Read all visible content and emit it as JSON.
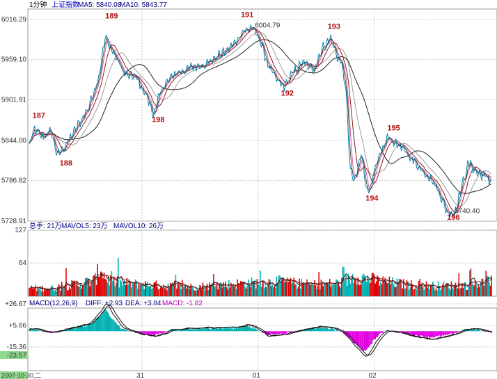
{
  "header": {
    "timeframe": "1分钟",
    "index_name": "上证指数",
    "ma5": "MA5: 5840.08",
    "ma10": "MA10: 5843.77"
  },
  "volume_header": {
    "label": "总手: 21万",
    "mavol5": "MAVOL5: 23万",
    "mavol10": "MAVOL10: 26万"
  },
  "macd_header": {
    "label": "MACD(12,26,9)",
    "diff": "DIFF: +2.93",
    "dea": "DEA: +3.84",
    "macd": "MACD: -1.82"
  },
  "price_axis": [
    "6016.29",
    "5959.10",
    "5901.91",
    "5844.00",
    "5786.82",
    "5728.91"
  ],
  "volume_axis": [
    "127",
    "64"
  ],
  "macd_axis": [
    "+26.67",
    "+5.66",
    "-15.36",
    "-23.57"
  ],
  "date_label": "2007-10-30,二",
  "x_ticks": [
    "31",
    "01",
    "02"
  ],
  "annotations": [
    {
      "text": "187",
      "x": 3,
      "y": 5876
    },
    {
      "text": "188",
      "x": 28,
      "y": 5808
    },
    {
      "text": "189",
      "x": 70,
      "y": 6018
    },
    {
      "text": "198",
      "x": 113,
      "y": 5870
    },
    {
      "text": "191",
      "x": 195,
      "y": 6020
    },
    {
      "text": "192",
      "x": 232,
      "y": 5908
    },
    {
      "text": "193",
      "x": 275,
      "y": 6003
    },
    {
      "text": "194",
      "x": 310,
      "y": 5758
    },
    {
      "text": "195",
      "x": 330,
      "y": 5858
    },
    {
      "text": "196",
      "x": 385,
      "y": 5731
    },
    {
      "text": "6004.79",
      "x": 208,
      "y": 6004.79
    },
    {
      "text": "5740.40",
      "x": 392,
      "y": 5740.4
    }
  ],
  "colors": {
    "up": "#e00000",
    "down": "#00b0b0",
    "ma_pink": "#d06090",
    "ma_dark_red": "#8b1a1a",
    "ma_black": "#222222",
    "ma_gray": "#9a9a9a",
    "macd_pos": "#00b0b0",
    "macd_neg": "#e000e0",
    "grid": "#c8c8c8",
    "axis_text": "#333333",
    "date_bg": "#8fd98f"
  },
  "chart_data": {
    "type": "line",
    "title": "上证指数 1分钟",
    "x_label": "",
    "y_label": "",
    "ylim": [
      5728.91,
      6016.29
    ],
    "price_keypoints": [
      [
        0,
        5838
      ],
      [
        5,
        5860
      ],
      [
        12,
        5848
      ],
      [
        20,
        5858
      ],
      [
        26,
        5822
      ],
      [
        30,
        5830
      ],
      [
        40,
        5852
      ],
      [
        55,
        5892
      ],
      [
        64,
        5935
      ],
      [
        70,
        5990
      ],
      [
        78,
        5968
      ],
      [
        88,
        5938
      ],
      [
        98,
        5934
      ],
      [
        108,
        5908
      ],
      [
        115,
        5880
      ],
      [
        122,
        5918
      ],
      [
        135,
        5940
      ],
      [
        150,
        5948
      ],
      [
        165,
        5955
      ],
      [
        178,
        5968
      ],
      [
        188,
        5980
      ],
      [
        196,
        5998
      ],
      [
        205,
        6004.79
      ],
      [
        212,
        5990
      ],
      [
        220,
        5952
      ],
      [
        228,
        5930
      ],
      [
        235,
        5920
      ],
      [
        242,
        5938
      ],
      [
        252,
        5955
      ],
      [
        262,
        5945
      ],
      [
        270,
        5975
      ],
      [
        278,
        5990
      ],
      [
        284,
        5962
      ],
      [
        288,
        5955
      ],
      [
        292,
        5912
      ],
      [
        296,
        5800
      ],
      [
        300,
        5785
      ],
      [
        306,
        5825
      ],
      [
        312,
        5768
      ],
      [
        320,
        5808
      ],
      [
        330,
        5848
      ],
      [
        340,
        5838
      ],
      [
        350,
        5822
      ],
      [
        360,
        5805
      ],
      [
        370,
        5790
      ],
      [
        378,
        5770
      ],
      [
        385,
        5742
      ],
      [
        392,
        5740.4
      ],
      [
        398,
        5775
      ],
      [
        405,
        5812
      ],
      [
        413,
        5798
      ],
      [
        420,
        5793
      ],
      [
        426,
        5786
      ]
    ],
    "volume_ylim": [
      0,
      127
    ],
    "volume_keypoints": [
      [
        0,
        16
      ],
      [
        20,
        15
      ],
      [
        40,
        22
      ],
      [
        60,
        30
      ],
      [
        66,
        55
      ],
      [
        70,
        36
      ],
      [
        80,
        26
      ],
      [
        110,
        22
      ],
      [
        150,
        18
      ],
      [
        200,
        25
      ],
      [
        230,
        28
      ],
      [
        260,
        22
      ],
      [
        290,
        26
      ],
      [
        300,
        40
      ],
      [
        320,
        30
      ],
      [
        350,
        22
      ],
      [
        380,
        20
      ],
      [
        410,
        22
      ],
      [
        426,
        30
      ]
    ],
    "macd_ylim": [
      -23.57,
      26.67
    ],
    "macd_keypoints": [
      [
        0,
        2
      ],
      [
        20,
        -1
      ],
      [
        40,
        3
      ],
      [
        55,
        6
      ],
      [
        64,
        14
      ],
      [
        70,
        22
      ],
      [
        76,
        12
      ],
      [
        86,
        2
      ],
      [
        100,
        -2
      ],
      [
        115,
        -4
      ],
      [
        130,
        1
      ],
      [
        150,
        2
      ],
      [
        170,
        3
      ],
      [
        190,
        3
      ],
      [
        200,
        5
      ],
      [
        210,
        2
      ],
      [
        220,
        -4
      ],
      [
        235,
        -2
      ],
      [
        250,
        1
      ],
      [
        270,
        4
      ],
      [
        280,
        2
      ],
      [
        290,
        -2
      ],
      [
        300,
        -12
      ],
      [
        310,
        -20
      ],
      [
        318,
        -8
      ],
      [
        328,
        1
      ],
      [
        340,
        -1
      ],
      [
        355,
        -4
      ],
      [
        370,
        -6
      ],
      [
        385,
        -4
      ],
      [
        400,
        1
      ],
      [
        412,
        2
      ],
      [
        426,
        -1
      ]
    ]
  }
}
